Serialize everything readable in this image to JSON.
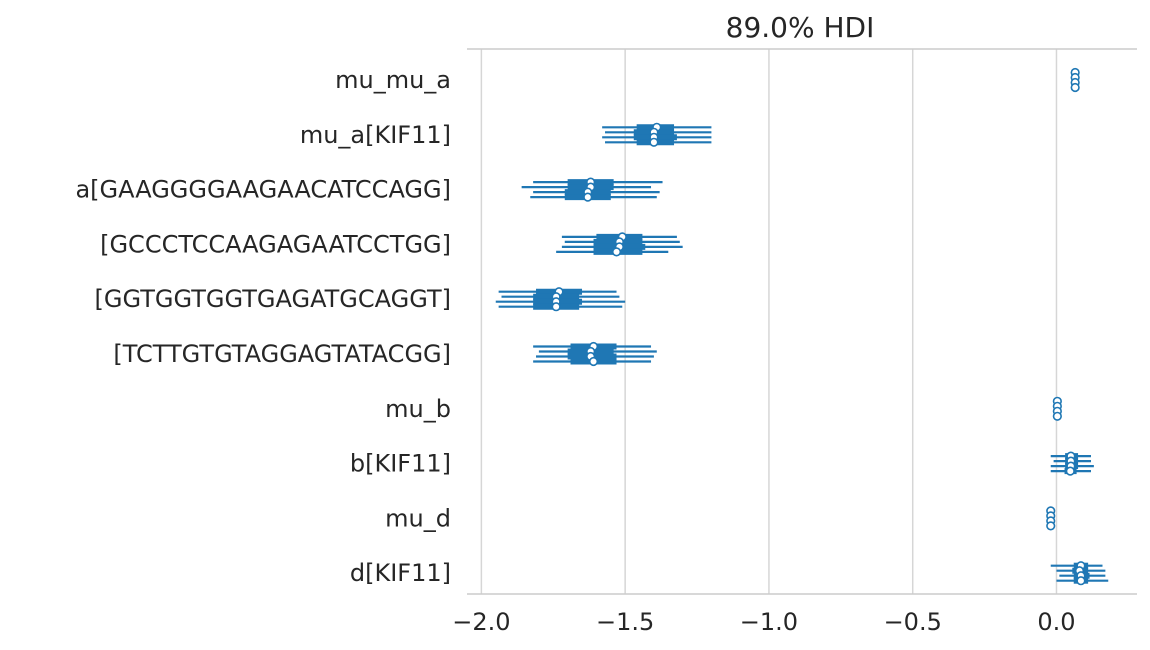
{
  "chart_data": {
    "type": "forest",
    "title": "89.0% HDI",
    "xlabel": "",
    "ylabel": "",
    "xlim": [
      -2.05,
      0.28
    ],
    "xticks": [
      -2.0,
      -1.5,
      -1.0,
      -0.5,
      0.0
    ],
    "xtick_labels": [
      "−2.0",
      "−1.5",
      "−1.0",
      "−0.5",
      "0.0"
    ],
    "grid": "vertical",
    "color": "#1f77b4",
    "rows": [
      {
        "label": "mu_mu_a",
        "chains": [
          {
            "mean": 0.065,
            "q25": 0.065,
            "q75": 0.065,
            "hdi": [
              0.065,
              0.065
            ]
          },
          {
            "mean": 0.065,
            "q25": 0.065,
            "q75": 0.065,
            "hdi": [
              0.065,
              0.065
            ]
          },
          {
            "mean": 0.065,
            "q25": 0.065,
            "q75": 0.065,
            "hdi": [
              0.065,
              0.065
            ]
          },
          {
            "mean": 0.065,
            "q25": 0.065,
            "q75": 0.065,
            "hdi": [
              0.065,
              0.065
            ]
          }
        ]
      },
      {
        "label": "mu_a[KIF11]",
        "chains": [
          {
            "mean": -1.39,
            "q25": -1.46,
            "q75": -1.33,
            "hdi": [
              -1.58,
              -1.2
            ]
          },
          {
            "mean": -1.4,
            "q25": -1.47,
            "q75": -1.33,
            "hdi": [
              -1.57,
              -1.2
            ]
          },
          {
            "mean": -1.4,
            "q25": -1.47,
            "q75": -1.32,
            "hdi": [
              -1.58,
              -1.2
            ]
          },
          {
            "mean": -1.4,
            "q25": -1.46,
            "q75": -1.33,
            "hdi": [
              -1.57,
              -1.2
            ]
          }
        ]
      },
      {
        "label": "a[GAAGGGGAAGAACATCCAGG]",
        "chains": [
          {
            "mean": -1.62,
            "q25": -1.7,
            "q75": -1.54,
            "hdi": [
              -1.82,
              -1.37
            ]
          },
          {
            "mean": -1.62,
            "q25": -1.7,
            "q75": -1.54,
            "hdi": [
              -1.86,
              -1.41
            ]
          },
          {
            "mean": -1.63,
            "q25": -1.71,
            "q75": -1.55,
            "hdi": [
              -1.82,
              -1.38
            ]
          },
          {
            "mean": -1.63,
            "q25": -1.71,
            "q75": -1.55,
            "hdi": [
              -1.83,
              -1.39
            ]
          }
        ]
      },
      {
        "label": "[GCCCTCCAAGAGAATCCTGG]",
        "chains": [
          {
            "mean": -1.51,
            "q25": -1.6,
            "q75": -1.44,
            "hdi": [
              -1.72,
              -1.32
            ]
          },
          {
            "mean": -1.52,
            "q25": -1.61,
            "q75": -1.44,
            "hdi": [
              -1.71,
              -1.31
            ]
          },
          {
            "mean": -1.52,
            "q25": -1.61,
            "q75": -1.43,
            "hdi": [
              -1.72,
              -1.3
            ]
          },
          {
            "mean": -1.53,
            "q25": -1.61,
            "q75": -1.44,
            "hdi": [
              -1.74,
              -1.35
            ]
          }
        ]
      },
      {
        "label": "[GGTGGTGGTGAGATGCAGGT]",
        "chains": [
          {
            "mean": -1.73,
            "q25": -1.81,
            "q75": -1.65,
            "hdi": [
              -1.94,
              -1.53
            ]
          },
          {
            "mean": -1.74,
            "q25": -1.82,
            "q75": -1.66,
            "hdi": [
              -1.93,
              -1.52
            ]
          },
          {
            "mean": -1.74,
            "q25": -1.82,
            "q75": -1.65,
            "hdi": [
              -1.95,
              -1.5
            ]
          },
          {
            "mean": -1.74,
            "q25": -1.82,
            "q75": -1.66,
            "hdi": [
              -1.94,
              -1.51
            ]
          }
        ]
      },
      {
        "label": "[TCTTGTGTAGGAGTATACGG]",
        "chains": [
          {
            "mean": -1.61,
            "q25": -1.69,
            "q75": -1.53,
            "hdi": [
              -1.82,
              -1.41
            ]
          },
          {
            "mean": -1.62,
            "q25": -1.7,
            "q75": -1.54,
            "hdi": [
              -1.8,
              -1.39
            ]
          },
          {
            "mean": -1.62,
            "q25": -1.7,
            "q75": -1.53,
            "hdi": [
              -1.81,
              -1.4
            ]
          },
          {
            "mean": -1.61,
            "q25": -1.69,
            "q75": -1.53,
            "hdi": [
              -1.82,
              -1.41
            ]
          }
        ]
      },
      {
        "label": "mu_b",
        "chains": [
          {
            "mean": 0.003,
            "q25": 0.003,
            "q75": 0.003,
            "hdi": [
              0.003,
              0.003
            ]
          },
          {
            "mean": 0.003,
            "q25": 0.003,
            "q75": 0.003,
            "hdi": [
              0.003,
              0.003
            ]
          },
          {
            "mean": 0.003,
            "q25": 0.003,
            "q75": 0.003,
            "hdi": [
              0.003,
              0.003
            ]
          },
          {
            "mean": 0.003,
            "q25": 0.003,
            "q75": 0.003,
            "hdi": [
              0.003,
              0.003
            ]
          }
        ]
      },
      {
        "label": "b[KIF11]",
        "chains": [
          {
            "mean": 0.05,
            "q25": 0.03,
            "q75": 0.075,
            "hdi": [
              -0.02,
              0.12
            ]
          },
          {
            "mean": 0.05,
            "q25": 0.03,
            "q75": 0.075,
            "hdi": [
              -0.01,
              0.12
            ]
          },
          {
            "mean": 0.05,
            "q25": 0.03,
            "q75": 0.075,
            "hdi": [
              -0.02,
              0.13
            ]
          },
          {
            "mean": 0.048,
            "q25": 0.028,
            "q75": 0.07,
            "hdi": [
              -0.02,
              0.12
            ]
          }
        ]
      },
      {
        "label": "mu_d",
        "chains": [
          {
            "mean": -0.02,
            "q25": -0.02,
            "q75": -0.02,
            "hdi": [
              -0.02,
              -0.02
            ]
          },
          {
            "mean": -0.02,
            "q25": -0.02,
            "q75": -0.02,
            "hdi": [
              -0.02,
              -0.02
            ]
          },
          {
            "mean": -0.02,
            "q25": -0.02,
            "q75": -0.02,
            "hdi": [
              -0.02,
              -0.02
            ]
          },
          {
            "mean": -0.02,
            "q25": -0.02,
            "q75": -0.02,
            "hdi": [
              -0.02,
              -0.02
            ]
          }
        ]
      },
      {
        "label": "d[KIF11]",
        "chains": [
          {
            "mean": 0.085,
            "q25": 0.06,
            "q75": 0.11,
            "hdi": [
              -0.02,
              0.16
            ]
          },
          {
            "mean": 0.08,
            "q25": 0.055,
            "q75": 0.11,
            "hdi": [
              0.0,
              0.17
            ]
          },
          {
            "mean": 0.085,
            "q25": 0.06,
            "q75": 0.115,
            "hdi": [
              0.01,
              0.17
            ]
          },
          {
            "mean": 0.085,
            "q25": 0.06,
            "q75": 0.11,
            "hdi": [
              0.0,
              0.18
            ]
          }
        ]
      }
    ]
  }
}
